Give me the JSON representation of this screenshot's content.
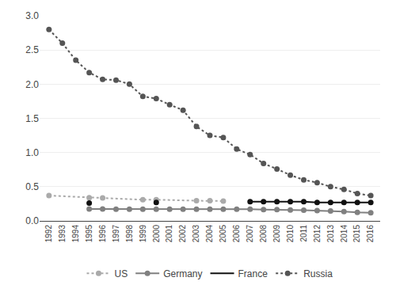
{
  "chart_data": {
    "type": "line",
    "xlim": [
      1991.3,
      2016.7
    ],
    "xticks": [
      1992,
      1993,
      1994,
      1995,
      1996,
      1997,
      1998,
      1999,
      2000,
      2001,
      2002,
      2003,
      2004,
      2005,
      2006,
      2007,
      2008,
      2009,
      2010,
      2011,
      2012,
      2013,
      2014,
      2015,
      2016
    ],
    "ylim": [
      0.0,
      3.0
    ],
    "yticks": [
      {
        "value": 0.0,
        "label": "0.0"
      },
      0.5,
      {
        "value": 1.0,
        "label": "1.0"
      },
      1.5,
      {
        "value": 2.0,
        "label": "2.0"
      },
      2.5,
      {
        "value": 3.0,
        "label": "3.0"
      }
    ],
    "grid": "y",
    "legend": "bottom",
    "series": [
      {
        "name": "US",
        "color": "#aaaaaa",
        "line_style": "dotted",
        "marker": "circle",
        "x": [
          1992,
          1995,
          1996,
          1999,
          2000,
          2003,
          2004,
          2005
        ],
        "values": [
          0.37,
          0.34,
          0.335,
          0.31,
          0.31,
          0.295,
          0.295,
          0.29
        ]
      },
      {
        "name": "Germany",
        "color": "#808080",
        "line_style": "solid",
        "marker": "circle",
        "x": [
          1995,
          1996,
          1997,
          1998,
          1999,
          2000,
          2001,
          2002,
          2003,
          2004,
          2005,
          2006,
          2007,
          2008,
          2009,
          2010,
          2011,
          2012,
          2013,
          2014,
          2015,
          2016
        ],
        "values": [
          0.175,
          0.175,
          0.17,
          0.17,
          0.17,
          0.17,
          0.17,
          0.17,
          0.17,
          0.17,
          0.17,
          0.17,
          0.17,
          0.165,
          0.165,
          0.16,
          0.155,
          0.15,
          0.145,
          0.135,
          0.125,
          0.12
        ]
      },
      {
        "name": "France",
        "color": "#111111",
        "line_style": "solid",
        "marker": "circle",
        "x": [
          2007,
          2008,
          2009,
          2010,
          2011,
          2012,
          2013,
          2014,
          2015,
          2016
        ],
        "values": [
          0.28,
          0.28,
          0.28,
          0.28,
          0.28,
          0.27,
          0.27,
          0.27,
          0.27,
          0.27
        ],
        "points_x": [
          1995,
          2000,
          2007,
          2008,
          2009,
          2010,
          2011,
          2012,
          2013,
          2014,
          2015,
          2016
        ],
        "points_values": [
          0.26,
          0.27,
          0.28,
          0.28,
          0.28,
          0.28,
          0.28,
          0.27,
          0.27,
          0.27,
          0.27,
          0.27
        ]
      },
      {
        "name": "Russia",
        "color": "#555555",
        "line_style": "dotted",
        "marker": "circle",
        "x": [
          1992,
          1993,
          1994,
          1995,
          1996,
          1997,
          1998,
          1999,
          2000,
          2001,
          2002,
          2003,
          2004,
          2005,
          2006,
          2007,
          2008,
          2009,
          2010,
          2011,
          2012,
          2013,
          2014,
          2015,
          2016
        ],
        "values": [
          2.8,
          2.6,
          2.35,
          2.17,
          2.07,
          2.06,
          2.0,
          1.82,
          1.79,
          1.7,
          1.62,
          1.38,
          1.25,
          1.22,
          1.05,
          0.97,
          0.84,
          0.76,
          0.67,
          0.6,
          0.56,
          0.5,
          0.46,
          0.4,
          0.37
        ]
      }
    ]
  }
}
